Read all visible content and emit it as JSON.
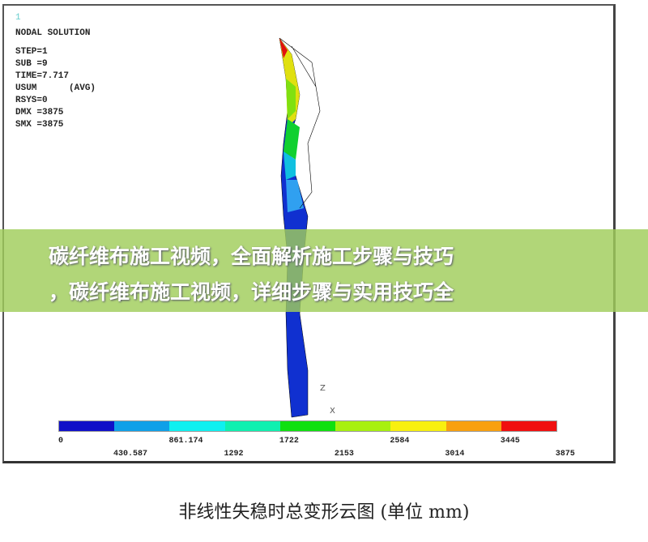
{
  "plot": {
    "number": "1",
    "title": "NODAL SOLUTION",
    "lines": [
      "STEP=1",
      "SUB =9",
      "TIME=7.717",
      "USUM      (AVG)",
      "RSYS=0",
      "DMX =3875",
      "SMX =3875"
    ],
    "axis_label_z": "Z",
    "axis_label_x": "X"
  },
  "legend": {
    "colors": [
      "#1010c8",
      "#10a0e8",
      "#10f0f0",
      "#10f0b0",
      "#10e010",
      "#a8f010",
      "#f8f010",
      "#f8a010",
      "#f01010"
    ],
    "labels_top": [
      "0",
      "861.174",
      "1722",
      "2584",
      "3445"
    ],
    "labels_bottom": [
      "430.587",
      "1292",
      "2153",
      "3014",
      "3875"
    ]
  },
  "banner": {
    "line1": "碳纤维布施工视频，全面解析施工步骤与技巧",
    "line2": "，碳纤维布施工视频，详细步骤与实用技巧全"
  },
  "caption": "非线性失稳时总变形云图 (单位 mm)"
}
